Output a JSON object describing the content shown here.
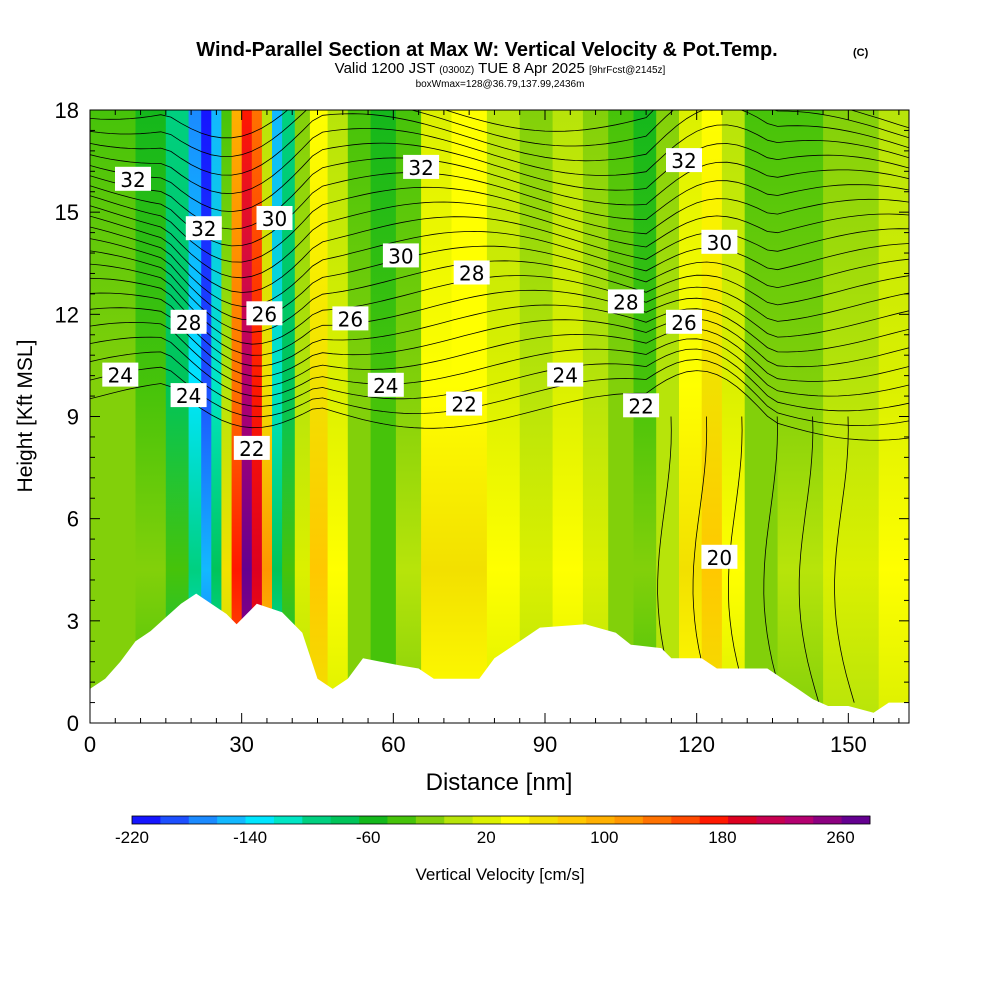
{
  "header": {
    "title": "Wind-Parallel Section at Max W: Vertical Velocity & Pot.Temp.",
    "title_mark": "(C)",
    "valid_prefix": "Valid 1200 JST",
    "valid_utc": "(0300Z)",
    "valid_date": "TUE 8 Apr 2025",
    "valid_fcst": "[9hrFcst@2145z]",
    "box_info": "boxWmax=128@36.79,137.99,2436m"
  },
  "chart_data": {
    "type": "heatmap",
    "title": "Wind-Parallel Section at Max W: Vertical Velocity & Pot.Temp.",
    "xlabel": "Distance [nm]",
    "ylabel": "Height [Kft MSL]",
    "xlim": [
      0,
      162
    ],
    "ylim": [
      0,
      18
    ],
    "x_ticks": [
      0,
      30,
      60,
      90,
      120,
      150
    ],
    "y_ticks": [
      0,
      3,
      6,
      9,
      12,
      15,
      18
    ],
    "colorbar": {
      "label": "Vertical Velocity [cm/s]",
      "tick_values": [
        -220,
        -140,
        -60,
        20,
        100,
        180,
        260
      ],
      "min": -220,
      "max": 280,
      "colors": [
        "#1515ff",
        "#1d4fff",
        "#1b8aff",
        "#13b8ff",
        "#00e6ff",
        "#00e6c4",
        "#00d080",
        "#00c45a",
        "#14b81c",
        "#46c30a",
        "#82d00a",
        "#b7e40a",
        "#dbf000",
        "#ffff00",
        "#f2e000",
        "#ffc800",
        "#ffb000",
        "#ff9600",
        "#ff7200",
        "#ff4a00",
        "#ff1800",
        "#dd0020",
        "#c80050",
        "#b40070",
        "#8c0080",
        "#640090"
      ]
    },
    "contour_labels": [
      {
        "x": 8.5,
        "y": 15.95,
        "text": "32"
      },
      {
        "x": 22.5,
        "y": 14.5,
        "text": "32"
      },
      {
        "x": 36.5,
        "y": 14.8,
        "text": "30"
      },
      {
        "x": 65.5,
        "y": 16.3,
        "text": "32"
      },
      {
        "x": 61.5,
        "y": 13.7,
        "text": "30"
      },
      {
        "x": 75.5,
        "y": 13.2,
        "text": "28"
      },
      {
        "x": 117.5,
        "y": 16.5,
        "text": "32"
      },
      {
        "x": 124.5,
        "y": 14.1,
        "text": "30"
      },
      {
        "x": 106,
        "y": 12.35,
        "text": "28"
      },
      {
        "x": 117.5,
        "y": 11.75,
        "text": "26"
      },
      {
        "x": 19.5,
        "y": 11.75,
        "text": "28"
      },
      {
        "x": 34.5,
        "y": 12.0,
        "text": "26"
      },
      {
        "x": 51.5,
        "y": 11.85,
        "text": "26"
      },
      {
        "x": 6,
        "y": 10.2,
        "text": "24"
      },
      {
        "x": 19.5,
        "y": 9.6,
        "text": "24"
      },
      {
        "x": 58.5,
        "y": 9.9,
        "text": "24"
      },
      {
        "x": 94,
        "y": 10.2,
        "text": "24"
      },
      {
        "x": 74,
        "y": 9.35,
        "text": "22"
      },
      {
        "x": 109,
        "y": 9.3,
        "text": "22"
      },
      {
        "x": 32,
        "y": 8.05,
        "text": "22"
      },
      {
        "x": 124.5,
        "y": 4.85,
        "text": "20"
      }
    ],
    "terrain_kft": [
      [
        0,
        1.0
      ],
      [
        3,
        1.3
      ],
      [
        6,
        1.8
      ],
      [
        9,
        2.4
      ],
      [
        12,
        2.7
      ],
      [
        15,
        3.1
      ],
      [
        18,
        3.5
      ],
      [
        21,
        3.8
      ],
      [
        27,
        3.2
      ],
      [
        29,
        2.9
      ],
      [
        33,
        3.5
      ],
      [
        38,
        3.25
      ],
      [
        42,
        2.65
      ],
      [
        45,
        1.3
      ],
      [
        48,
        1.0
      ],
      [
        51,
        1.3
      ],
      [
        54,
        1.9
      ],
      [
        61,
        1.7
      ],
      [
        65,
        1.6
      ],
      [
        68,
        1.3
      ],
      [
        77,
        1.3
      ],
      [
        80,
        1.9
      ],
      [
        83,
        2.2
      ],
      [
        86,
        2.5
      ],
      [
        89,
        2.8
      ],
      [
        98,
        2.9
      ],
      [
        104,
        2.65
      ],
      [
        107,
        2.3
      ],
      [
        113,
        2.2
      ],
      [
        115,
        1.9
      ],
      [
        121,
        1.9
      ],
      [
        124,
        1.6
      ],
      [
        134,
        1.6
      ],
      [
        137,
        1.3
      ],
      [
        140,
        1.0
      ],
      [
        143,
        0.7
      ],
      [
        146,
        0.5
      ],
      [
        150,
        0.5
      ],
      [
        155,
        0.3
      ],
      [
        158,
        0.6
      ],
      [
        162,
        0.6
      ]
    ],
    "velocity_columns": [
      {
        "x": 0,
        "min": -30,
        "max": -10
      },
      {
        "x": 6,
        "min": -40,
        "max": -10
      },
      {
        "x": 12,
        "min": -60,
        "max": -20
      },
      {
        "x": 18,
        "min": -100,
        "max": -40
      },
      {
        "x": 21,
        "min": -170,
        "max": -100
      },
      {
        "x": 23,
        "min": -220,
        "max": -160
      },
      {
        "x": 25,
        "min": -160,
        "max": -80
      },
      {
        "x": 27,
        "min": -40,
        "max": 60
      },
      {
        "x": 29,
        "min": 100,
        "max": 180
      },
      {
        "x": 31,
        "min": 180,
        "max": 280
      },
      {
        "x": 33,
        "min": 140,
        "max": 200
      },
      {
        "x": 35,
        "min": 0,
        "max": 120
      },
      {
        "x": 37,
        "min": -150,
        "max": -80
      },
      {
        "x": 39,
        "min": -100,
        "max": -40
      },
      {
        "x": 42,
        "min": -20,
        "max": 20
      },
      {
        "x": 45,
        "min": 40,
        "max": 80
      },
      {
        "x": 49,
        "min": 10,
        "max": 40
      },
      {
        "x": 53,
        "min": -40,
        "max": -10
      },
      {
        "x": 58,
        "min": -60,
        "max": -30
      },
      {
        "x": 63,
        "min": -30,
        "max": 10
      },
      {
        "x": 68,
        "min": 20,
        "max": 60
      },
      {
        "x": 75,
        "min": 30,
        "max": 60
      },
      {
        "x": 82,
        "min": 10,
        "max": 40
      },
      {
        "x": 88,
        "min": -20,
        "max": 20
      },
      {
        "x": 95,
        "min": 10,
        "max": 40
      },
      {
        "x": 100,
        "min": -10,
        "max": 20
      },
      {
        "x": 105,
        "min": -40,
        "max": -10
      },
      {
        "x": 110,
        "min": -50,
        "max": -20
      },
      {
        "x": 114,
        "min": -20,
        "max": 10
      },
      {
        "x": 119,
        "min": 20,
        "max": 60
      },
      {
        "x": 123,
        "min": 40,
        "max": 80
      },
      {
        "x": 127,
        "min": 0,
        "max": 40
      },
      {
        "x": 132,
        "min": -40,
        "max": -10
      },
      {
        "x": 140,
        "min": -30,
        "max": 0
      },
      {
        "x": 150,
        "min": -10,
        "max": 20
      },
      {
        "x": 162,
        "min": 0,
        "max": 30
      }
    ]
  }
}
